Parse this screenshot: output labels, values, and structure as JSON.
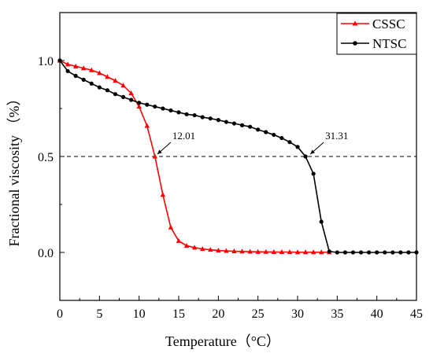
{
  "chart_data": {
    "type": "line",
    "xlabel": "Temperature（°C）",
    "ylabel": "Fractional viscosity （%）",
    "xlim": [
      0,
      45
    ],
    "ylim": [
      -0.25,
      1.25
    ],
    "x_ticks": [
      0,
      5,
      10,
      15,
      20,
      25,
      30,
      35,
      40,
      45
    ],
    "y_ticks": [
      0.0,
      0.5,
      1.0
    ],
    "y_tick_labels": [
      "0.0",
      "0.5",
      "1.0"
    ],
    "legend_position": "top-right",
    "reference_line": {
      "y": 0.5,
      "style": "dashed"
    },
    "series": [
      {
        "name": "CSSC",
        "color": "#ff0000",
        "marker": "triangle",
        "x": [
          0,
          1,
          2,
          3,
          4,
          5,
          6,
          7,
          8,
          9,
          10,
          11,
          12,
          13,
          14,
          15,
          16,
          17,
          18,
          19,
          20,
          21,
          22,
          23,
          24,
          25,
          26,
          27,
          28,
          29,
          30,
          31,
          32,
          33,
          34
        ],
        "y": [
          1.0,
          0.98,
          0.97,
          0.96,
          0.95,
          0.935,
          0.915,
          0.895,
          0.87,
          0.83,
          0.76,
          0.66,
          0.5,
          0.3,
          0.13,
          0.06,
          0.035,
          0.025,
          0.018,
          0.014,
          0.01,
          0.008,
          0.006,
          0.005,
          0.004,
          0.003,
          0.003,
          0.002,
          0.002,
          0.002,
          0.001,
          0.001,
          0.001,
          0.001,
          0.001
        ]
      },
      {
        "name": "NTSC",
        "color": "#000000",
        "marker": "circle",
        "x": [
          0,
          1,
          2,
          3,
          4,
          5,
          6,
          7,
          8,
          9,
          10,
          11,
          12,
          13,
          14,
          15,
          16,
          17,
          18,
          19,
          20,
          21,
          22,
          23,
          24,
          25,
          26,
          27,
          28,
          29,
          30,
          31,
          32,
          33,
          34,
          35,
          36,
          37,
          38,
          39,
          40,
          41,
          42,
          43,
          44,
          45
        ],
        "y": [
          1.0,
          0.945,
          0.92,
          0.9,
          0.88,
          0.86,
          0.845,
          0.825,
          0.81,
          0.795,
          0.78,
          0.77,
          0.76,
          0.75,
          0.74,
          0.73,
          0.72,
          0.715,
          0.705,
          0.698,
          0.69,
          0.68,
          0.672,
          0.663,
          0.655,
          0.64,
          0.627,
          0.613,
          0.596,
          0.575,
          0.55,
          0.5,
          0.41,
          0.16,
          0.005,
          0.0,
          0.0,
          0.0,
          0.0,
          0.0,
          0.0,
          0.0,
          0.0,
          0.0,
          0.0,
          0.0
        ]
      }
    ],
    "annotations": [
      {
        "text": "12.01",
        "x": 12.01,
        "y": 0.5
      },
      {
        "text": "31.31",
        "x": 31.31,
        "y": 0.5
      }
    ]
  }
}
